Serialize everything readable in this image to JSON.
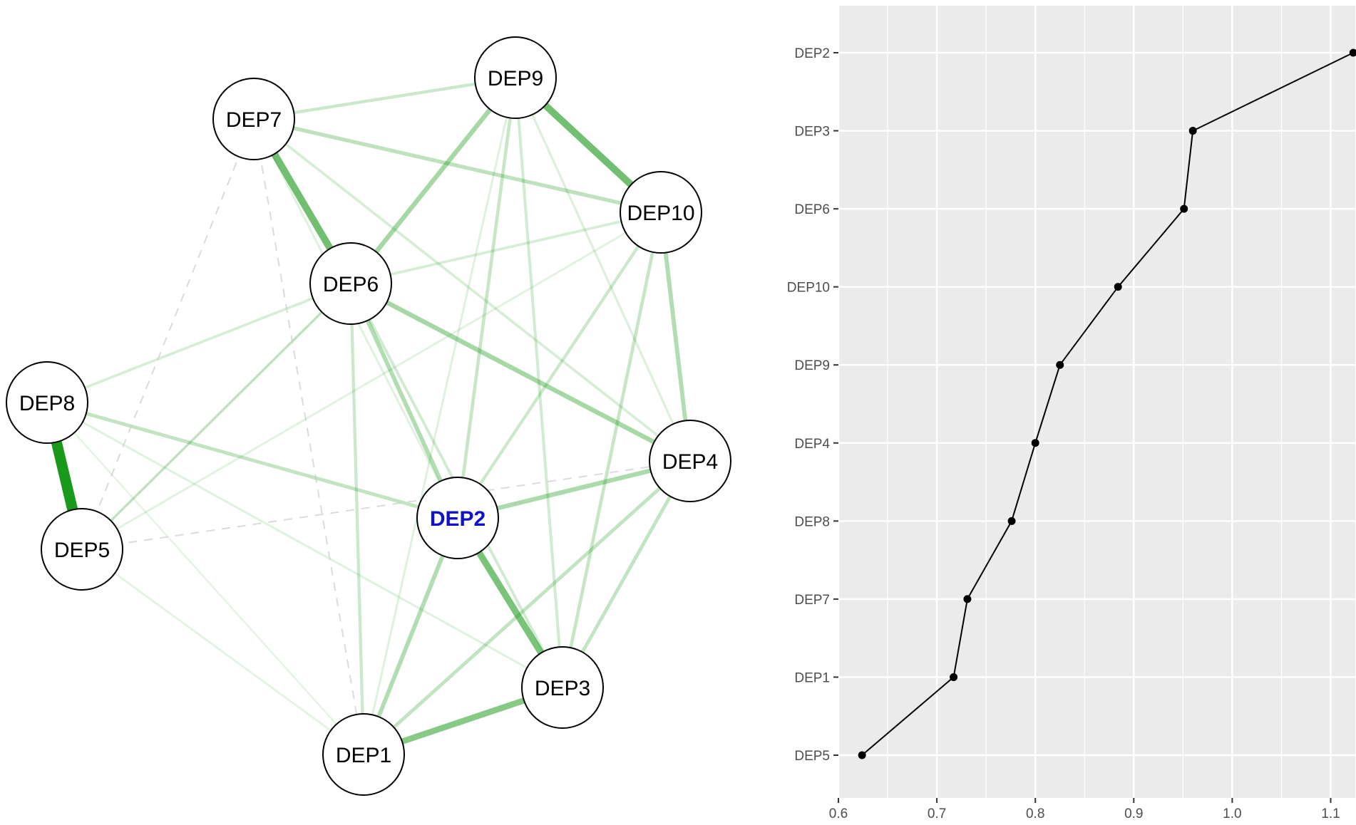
{
  "chart_data": [
    {
      "type": "network",
      "title": "",
      "colors": {
        "positive_edge": "#1a9a1a",
        "negative_edge": "#cccccc",
        "highlight_label": "#1010d0"
      },
      "highlighted_node": "DEP2",
      "nodes": [
        {
          "id": "DEP9",
          "label": "DEP9"
        },
        {
          "id": "DEP7",
          "label": "DEP7"
        },
        {
          "id": "DEP10",
          "label": "DEP10"
        },
        {
          "id": "DEP6",
          "label": "DEP6"
        },
        {
          "id": "DEP8",
          "label": "DEP8"
        },
        {
          "id": "DEP4",
          "label": "DEP4"
        },
        {
          "id": "DEP2",
          "label": "DEP2"
        },
        {
          "id": "DEP5",
          "label": "DEP5"
        },
        {
          "id": "DEP3",
          "label": "DEP3"
        },
        {
          "id": "DEP1",
          "label": "DEP1"
        }
      ],
      "edges": [
        {
          "from": "DEP8",
          "to": "DEP5",
          "weight": 1.0,
          "sign": "positive"
        },
        {
          "from": "DEP7",
          "to": "DEP6",
          "weight": 0.6,
          "sign": "positive"
        },
        {
          "from": "DEP9",
          "to": "DEP10",
          "weight": 0.6,
          "sign": "positive"
        },
        {
          "from": "DEP2",
          "to": "DEP3",
          "weight": 0.55,
          "sign": "positive"
        },
        {
          "from": "DEP1",
          "to": "DEP3",
          "weight": 0.5,
          "sign": "positive"
        },
        {
          "from": "DEP9",
          "to": "DEP6",
          "weight": 0.35,
          "sign": "positive"
        },
        {
          "from": "DEP6",
          "to": "DEP4",
          "weight": 0.35,
          "sign": "positive"
        },
        {
          "from": "DEP2",
          "to": "DEP4",
          "weight": 0.33,
          "sign": "positive"
        },
        {
          "from": "DEP10",
          "to": "DEP4",
          "weight": 0.3,
          "sign": "positive"
        },
        {
          "from": "DEP6",
          "to": "DEP2",
          "weight": 0.3,
          "sign": "positive"
        },
        {
          "from": "DEP2",
          "to": "DEP1",
          "weight": 0.3,
          "sign": "positive"
        },
        {
          "from": "DEP7",
          "to": "DEP10",
          "weight": 0.25,
          "sign": "positive"
        },
        {
          "from": "DEP8",
          "to": "DEP2",
          "weight": 0.22,
          "sign": "positive"
        },
        {
          "from": "DEP4",
          "to": "DEP3",
          "weight": 0.22,
          "sign": "positive"
        },
        {
          "from": "DEP4",
          "to": "DEP1",
          "weight": 0.22,
          "sign": "positive"
        },
        {
          "from": "DEP10",
          "to": "DEP3",
          "weight": 0.2,
          "sign": "positive"
        },
        {
          "from": "DEP9",
          "to": "DEP2",
          "weight": 0.2,
          "sign": "positive"
        },
        {
          "from": "DEP7",
          "to": "DEP9",
          "weight": 0.18,
          "sign": "positive"
        },
        {
          "from": "DEP10",
          "to": "DEP2",
          "weight": 0.18,
          "sign": "positive"
        },
        {
          "from": "DEP6",
          "to": "DEP1",
          "weight": 0.18,
          "sign": "positive"
        },
        {
          "from": "DEP6",
          "to": "DEP3",
          "weight": 0.15,
          "sign": "positive"
        },
        {
          "from": "DEP9",
          "to": "DEP3",
          "weight": 0.15,
          "sign": "positive"
        },
        {
          "from": "DEP7",
          "to": "DEP4",
          "weight": 0.13,
          "sign": "positive"
        },
        {
          "from": "DEP6",
          "to": "DEP10",
          "weight": 0.13,
          "sign": "positive"
        },
        {
          "from": "DEP8",
          "to": "DEP6",
          "weight": 0.13,
          "sign": "positive"
        },
        {
          "from": "DEP9",
          "to": "DEP4",
          "weight": 0.1,
          "sign": "positive"
        },
        {
          "from": "DEP5",
          "to": "DEP6",
          "weight": 0.12,
          "sign": "positive"
        },
        {
          "from": "DEP7",
          "to": "DEP2",
          "weight": 0.08,
          "sign": "positive"
        },
        {
          "from": "DEP8",
          "to": "DEP3",
          "weight": 0.08,
          "sign": "positive"
        },
        {
          "from": "DEP5",
          "to": "DEP10",
          "weight": 0.07,
          "sign": "positive"
        },
        {
          "from": "DEP5",
          "to": "DEP1",
          "weight": 0.06,
          "sign": "positive"
        },
        {
          "from": "DEP8",
          "to": "DEP1",
          "weight": 0.05,
          "sign": "positive"
        },
        {
          "from": "DEP9",
          "to": "DEP1",
          "weight": 0.08,
          "sign": "positive"
        },
        {
          "from": "DEP6",
          "to": "DEP5",
          "weight": 0.08,
          "sign": "positive"
        },
        {
          "from": "DEP7",
          "to": "DEP5",
          "weight": 0.08,
          "sign": "negative"
        },
        {
          "from": "DEP5",
          "to": "DEP4",
          "weight": 0.08,
          "sign": "negative"
        },
        {
          "from": "DEP7",
          "to": "DEP1",
          "weight": 0.05,
          "sign": "negative"
        }
      ]
    },
    {
      "type": "line",
      "title": "",
      "xlabel": "",
      "ylabel": "",
      "xlim": [
        0.6,
        1.125
      ],
      "xticks": [
        "0.6",
        "0.7",
        "0.8",
        "0.9",
        "1.0",
        "1.1"
      ],
      "grid": true,
      "panel_background": "#ebebeb",
      "categories": [
        "DEP2",
        "DEP3",
        "DEP6",
        "DEP10",
        "DEP9",
        "DEP4",
        "DEP8",
        "DEP7",
        "DEP1",
        "DEP5"
      ],
      "values": [
        1.123,
        0.96,
        0.951,
        0.884,
        0.825,
        0.8,
        0.776,
        0.731,
        0.717,
        0.624
      ]
    }
  ]
}
